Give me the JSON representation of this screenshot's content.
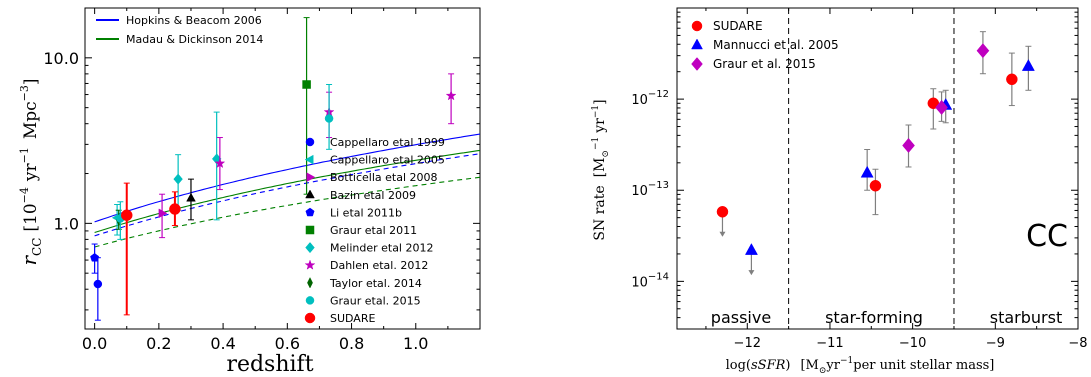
{
  "chart_data": [
    {
      "type": "scatter",
      "xlabel": "redshift",
      "ylabel": "r_CC [10^-4 yr^-1 Mpc^-3]",
      "ylabel_parts": {
        "main": "r",
        "sub": "CC",
        "bracket": "[10",
        "exp1": "−4",
        "yr": "yr",
        "exp2": "−1",
        "mpc": "Mpc",
        "exp3": "−3",
        "close": "]"
      },
      "xlim": [
        -0.03,
        1.2
      ],
      "ylim": [
        0.23,
        20.0
      ],
      "yscale": "log",
      "xticks": [
        0.0,
        0.2,
        0.4,
        0.6,
        0.8,
        1.0
      ],
      "xtick_labels": [
        "0.0",
        "0.2",
        "0.4",
        "0.6",
        "0.8",
        "1.0"
      ],
      "yticks": [
        1.0,
        10.0
      ],
      "ytick_labels": [
        "1.0",
        "10.0"
      ],
      "curves": [
        {
          "name": "Hopkins & Beacom 2006",
          "color": "#0000ff",
          "style": "solid",
          "y0": 1.02,
          "alpha": 1.55
        },
        {
          "name": "Madau & Dickinson 2014",
          "color": "#008000",
          "style": "solid",
          "y0": 0.88,
          "alpha": 1.45
        },
        {
          "color": "#0000ff",
          "style": "dashed",
          "y0": 0.84,
          "alpha": 1.45
        },
        {
          "color": "#008000",
          "style": "dashed",
          "y0": 0.72,
          "alpha": 1.23
        }
      ],
      "curve_legend": [
        {
          "label": "Hopkins & Beacom 2006",
          "color": "#0000ff"
        },
        {
          "label": "Madau & Dickinson 2014",
          "color": "#008000"
        }
      ],
      "series": [
        {
          "name": "Cappellaro etal 1999",
          "marker": "circle",
          "color": "#0000ff",
          "points": [
            {
              "x": 0.01,
              "y": 0.43,
              "lo": 0.26,
              "hi": 0.62
            }
          ]
        },
        {
          "name": "Cappellaro etal 2005",
          "marker": "triangle-left",
          "color": "#00bfbf",
          "points": [
            {
              "x": 0.07,
              "y": 1.08,
              "lo": 0.85,
              "hi": 1.3
            }
          ]
        },
        {
          "name": "Botticella etal 2008",
          "marker": "triangle-right",
          "color": "#bf00bf",
          "points": [
            {
              "x": 0.21,
              "y": 1.15,
              "lo": 0.82,
              "hi": 1.5
            }
          ]
        },
        {
          "name": "Bazin etal 2009",
          "marker": "triangle-up",
          "color": "#000000",
          "points": [
            {
              "x": 0.3,
              "y": 1.42,
              "lo": 1.05,
              "hi": 1.85
            }
          ]
        },
        {
          "name": "Li etal 2011b",
          "marker": "pentagon",
          "color": "#0000ff",
          "points": [
            {
              "x": 0.0,
              "y": 0.62,
              "lo": 0.5,
              "hi": 0.75
            }
          ]
        },
        {
          "name": "Graur etal 2011",
          "marker": "square",
          "color": "#008000",
          "points": [
            {
              "x": 0.66,
              "y": 6.9,
              "lo": 1.5,
              "hi": 17.5
            }
          ]
        },
        {
          "name": "Melinder etal 2012",
          "marker": "diamond",
          "color": "#00bfbf",
          "points": [
            {
              "x": 0.26,
              "y": 1.85,
              "lo": 1.2,
              "hi": 2.6
            },
            {
              "x": 0.38,
              "y": 2.45,
              "lo": 1.05,
              "hi": 4.7
            }
          ]
        },
        {
          "name": "Dahlen etal. 2012",
          "marker": "star",
          "color": "#bf00bf",
          "points": [
            {
              "x": 0.39,
              "y": 2.3,
              "lo": 1.6,
              "hi": 3.3
            },
            {
              "x": 0.73,
              "y": 4.7,
              "lo": 3.3,
              "hi": 6.2
            },
            {
              "x": 1.11,
              "y": 5.9,
              "lo": 4.0,
              "hi": 8.0
            }
          ]
        },
        {
          "name": "Taylor etal. 2014",
          "marker": "thin-diamond",
          "color": "#006400",
          "points": [
            {
              "x": 0.075,
              "y": 1.05,
              "lo": 0.92,
              "hi": 1.2
            }
          ]
        },
        {
          "name": "Graur etal. 2015",
          "marker": "circle",
          "color": "#00bfbf",
          "points": [
            {
              "x": 0.08,
              "y": 1.07,
              "lo": 0.8,
              "hi": 1.35
            },
            {
              "x": 0.73,
              "y": 4.3,
              "lo": 2.8,
              "hi": 6.9
            }
          ]
        },
        {
          "name": "SUDARE",
          "marker": "circle",
          "color": "#ff0000",
          "big": true,
          "points": [
            {
              "x": 0.1,
              "y": 1.12,
              "lo": 0.28,
              "hi": 1.75
            },
            {
              "x": 0.25,
              "y": 1.22,
              "lo": 0.97,
              "hi": 1.55
            }
          ]
        }
      ]
    },
    {
      "type": "scatter",
      "xlabel": "log(sSFR)  [M⊙yr⁻¹per unit stellar mass]",
      "xlabel_parts": {
        "log": "log(",
        "ssfr": "sSFR",
        "close": ")",
        "bracket": "[M",
        "sun": "⊙",
        "yr": "yr",
        "exp": "−1",
        "rest": "per unit stellar mass]"
      },
      "ylabel": "SN rate [M⊙⁻¹ yr⁻¹]",
      "ylabel_parts": {
        "main": "SN rate",
        "bracket": "[M",
        "sun": "⊙",
        "exp1": "−1",
        "yr": "yr",
        "exp2": "−1",
        "close": "]"
      },
      "xlim": [
        -12.85,
        -8.0
      ],
      "ylim": [
        3e-15,
        1e-11
      ],
      "yscale": "log",
      "xticks": [
        -12,
        -11,
        -10,
        -9,
        -8
      ],
      "xtick_labels": [
        "−12",
        "−11",
        "−10",
        "−9",
        "−8"
      ],
      "yticks": [
        1e-14,
        1e-13,
        1e-12
      ],
      "ytick_labels": [
        {
          "base": "10",
          "exp": "−14"
        },
        {
          "base": "10",
          "exp": "−13"
        },
        {
          "base": "10",
          "exp": "−12"
        }
      ],
      "dividers": [
        -11.5,
        -9.5
      ],
      "regions": [
        "passive",
        "star-forming",
        "starburst"
      ],
      "annotation": "CC",
      "series": [
        {
          "name": "SUDARE",
          "marker": "circle",
          "color": "#ff0000",
          "points": [
            {
              "x": -12.3,
              "y": 5.8e-14,
              "upper_limit": true
            },
            {
              "x": -10.45,
              "y": 1.12e-13,
              "lo": 5.4e-14,
              "hi": 1.7e-13
            },
            {
              "x": -9.75,
              "y": 9e-13,
              "lo": 4.7e-13,
              "hi": 1.3e-12
            },
            {
              "x": -8.8,
              "y": 1.65e-12,
              "lo": 8.5e-13,
              "hi": 3.2e-12
            }
          ]
        },
        {
          "name": "Mannucci et al. 2005",
          "marker": "triangle-up",
          "color": "#0000ff",
          "points": [
            {
              "x": -11.95,
              "y": 2.2e-14,
              "upper_limit": true
            },
            {
              "x": -10.55,
              "y": 1.55e-13,
              "lo": 1e-13,
              "hi": 2.8e-13
            },
            {
              "x": -9.6,
              "y": 8.6e-13,
              "lo": 5.5e-13,
              "hi": 1.25e-12
            },
            {
              "x": -8.6,
              "y": 2.3e-12,
              "lo": 1.25e-12,
              "hi": 3.8e-12
            }
          ]
        },
        {
          "name": "Graur et al. 2015",
          "marker": "diamond",
          "color": "#bf00bf",
          "points": [
            {
              "x": -10.05,
              "y": 3.1e-13,
              "lo": 1.8e-13,
              "hi": 5.2e-13
            },
            {
              "x": -9.65,
              "y": 8.1e-13,
              "lo": 5.7e-13,
              "hi": 1.2e-12
            },
            {
              "x": -9.15,
              "y": 3.4e-12,
              "lo": 1.9e-12,
              "hi": 5.5e-12
            }
          ]
        }
      ]
    }
  ]
}
